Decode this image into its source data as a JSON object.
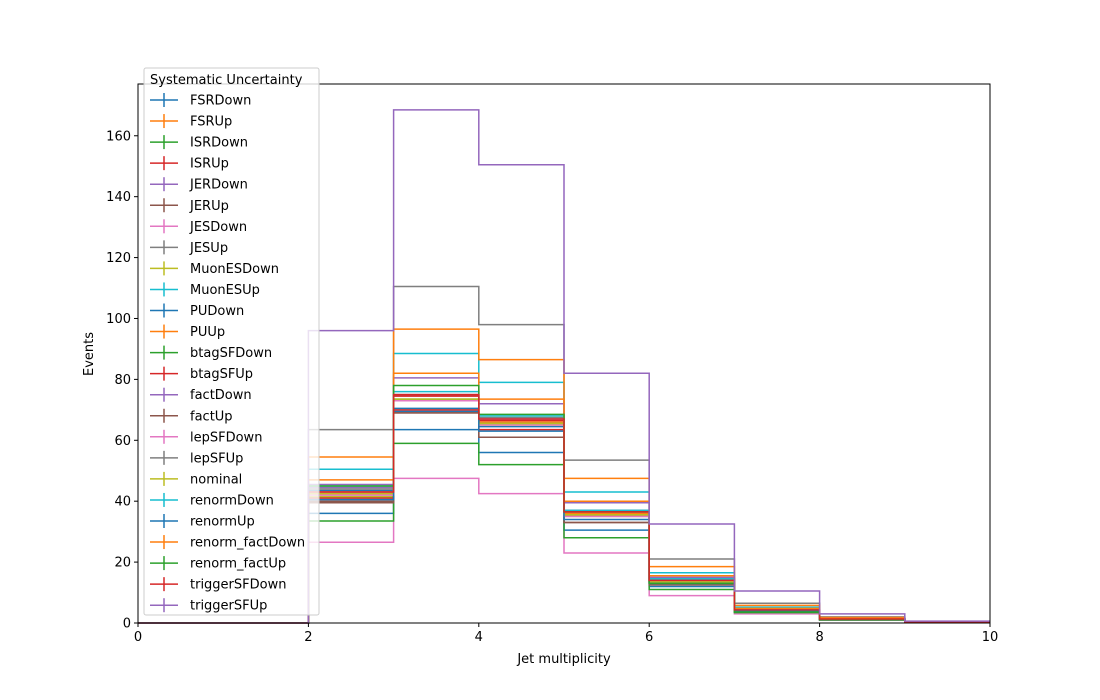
{
  "chart_data": {
    "type": "step",
    "xlabel": "Jet multiplicity",
    "ylabel": "Events",
    "xlim": [
      0,
      10
    ],
    "ylim": [
      0,
      177
    ],
    "x_ticks": [
      0,
      2,
      4,
      6,
      8,
      10
    ],
    "y_ticks": [
      0,
      20,
      40,
      60,
      80,
      100,
      120,
      140,
      160
    ],
    "bin_edges": [
      0,
      1,
      2,
      3,
      4,
      5,
      6,
      7,
      8,
      9,
      10
    ],
    "grid": false,
    "legend": {
      "title": "Systematic Uncertainty",
      "placement": "top-left"
    },
    "series": [
      {
        "name": "FSRDown",
        "color": "#1f77b4",
        "values": [
          0,
          0,
          43.5,
          69.5,
          64.5,
          35.5,
          13.5,
          4.0,
          1.3,
          0.3
        ]
      },
      {
        "name": "FSRUp",
        "color": "#ff7f0e",
        "values": [
          0,
          0,
          42.5,
          73.0,
          66.0,
          36.0,
          14.0,
          4.2,
          1.3,
          0.3
        ]
      },
      {
        "name": "ISRDown",
        "color": "#2ca02c",
        "values": [
          0,
          0,
          41.5,
          73.5,
          65.5,
          35.5,
          13.5,
          4.2,
          1.3,
          0.3
        ]
      },
      {
        "name": "ISRUp",
        "color": "#d62728",
        "values": [
          0,
          0,
          43.0,
          74.5,
          66.5,
          36.5,
          14.0,
          4.3,
          1.3,
          0.3
        ]
      },
      {
        "name": "JERDown",
        "color": "#9467bd",
        "values": [
          0,
          0,
          44.5,
          75.0,
          67.0,
          37.0,
          14.5,
          4.4,
          1.4,
          0.3
        ]
      },
      {
        "name": "JERUp",
        "color": "#8c564b",
        "values": [
          0,
          0,
          40.0,
          69.0,
          61.0,
          33.0,
          13.0,
          4.0,
          1.2,
          0.3
        ]
      },
      {
        "name": "JESDown",
        "color": "#e377c2",
        "values": [
          0,
          0,
          26.5,
          47.5,
          42.5,
          23.0,
          9.0,
          3.0,
          0.9,
          0.2
        ]
      },
      {
        "name": "JESUp",
        "color": "#7f7f7f",
        "values": [
          0,
          0,
          63.5,
          110.5,
          98.0,
          53.5,
          21.0,
          6.5,
          2.0,
          0.5
        ]
      },
      {
        "name": "MuonESDown",
        "color": "#bcbd22",
        "values": [
          0,
          0,
          41.5,
          73.0,
          65.0,
          35.5,
          13.5,
          4.2,
          1.3,
          0.3
        ]
      },
      {
        "name": "MuonESUp",
        "color": "#17becf",
        "values": [
          0,
          0,
          50.5,
          88.5,
          79.0,
          43.0,
          16.5,
          5.2,
          1.6,
          0.4
        ]
      },
      {
        "name": "PUDown",
        "color": "#1f77b4",
        "values": [
          0,
          0,
          36.0,
          63.5,
          56.0,
          30.5,
          12.0,
          3.7,
          1.1,
          0.3
        ]
      },
      {
        "name": "PUUp",
        "color": "#ff7f0e",
        "values": [
          0,
          0,
          54.5,
          96.5,
          86.5,
          47.5,
          18.5,
          5.8,
          1.8,
          0.4
        ]
      },
      {
        "name": "btagSFDown",
        "color": "#2ca02c",
        "values": [
          0,
          0,
          33.5,
          59.0,
          52.0,
          28.0,
          11.0,
          3.4,
          1.0,
          0.2
        ]
      },
      {
        "name": "btagSFUp",
        "color": "#d62728",
        "values": [
          0,
          0,
          41.0,
          70.0,
          63.5,
          35.0,
          13.5,
          4.1,
          1.3,
          0.3
        ]
      },
      {
        "name": "factDown",
        "color": "#9467bd",
        "values": [
          0,
          0,
          45.5,
          80.5,
          72.0,
          39.5,
          15.0,
          4.7,
          1.5,
          0.3
        ]
      },
      {
        "name": "factUp",
        "color": "#8c564b",
        "values": [
          0,
          0,
          39.5,
          69.0,
          61.0,
          33.0,
          12.5,
          3.9,
          1.2,
          0.3
        ]
      },
      {
        "name": "lepSFDown",
        "color": "#e377c2",
        "values": [
          0,
          0,
          42.0,
          73.0,
          65.0,
          35.0,
          13.5,
          4.2,
          1.3,
          0.3
        ]
      },
      {
        "name": "lepSFUp",
        "color": "#7f7f7f",
        "values": [
          0,
          0,
          44.0,
          75.0,
          67.5,
          37.0,
          14.5,
          4.4,
          1.4,
          0.3
        ]
      },
      {
        "name": "nominal",
        "color": "#bcbd22",
        "values": [
          0,
          0,
          42.5,
          73.5,
          65.5,
          35.5,
          13.5,
          4.2,
          1.3,
          0.3
        ]
      },
      {
        "name": "renormDown",
        "color": "#17becf",
        "values": [
          0,
          0,
          45.0,
          76.0,
          68.0,
          37.0,
          14.5,
          4.5,
          1.4,
          0.3
        ]
      },
      {
        "name": "renormUp",
        "color": "#1f77b4",
        "values": [
          0,
          0,
          40.5,
          70.5,
          63.0,
          34.0,
          13.0,
          4.0,
          1.2,
          0.3
        ]
      },
      {
        "name": "renorm_factDown",
        "color": "#ff7f0e",
        "values": [
          0,
          0,
          47.0,
          82.0,
          73.5,
          40.0,
          15.5,
          4.8,
          1.5,
          0.3
        ]
      },
      {
        "name": "renorm_factUp",
        "color": "#2ca02c",
        "values": [
          0,
          0,
          45.0,
          78.0,
          68.5,
          36.5,
          13.0,
          3.6,
          1.1,
          0.3
        ]
      },
      {
        "name": "triggerSFDown",
        "color": "#d62728",
        "values": [
          0,
          0,
          43.0,
          75.0,
          67.0,
          36.5,
          14.0,
          4.3,
          1.3,
          0.3
        ]
      },
      {
        "name": "triggerSFUp",
        "color": "#9467bd",
        "values": [
          0,
          0,
          96.0,
          168.5,
          150.5,
          82.0,
          32.5,
          10.5,
          3.0,
          0.6
        ]
      }
    ]
  }
}
